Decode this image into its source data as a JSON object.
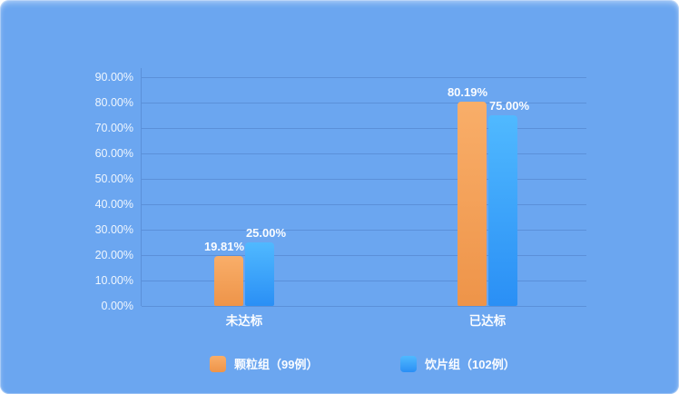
{
  "panel": {
    "background": "#6BA6F0",
    "gridline_color": "#5B90D9",
    "axis_color": "#5B90D9",
    "tick_text_color": "#EFF6FE",
    "label_text_color": "#FAFCFF"
  },
  "chart_data": {
    "type": "bar",
    "categories": [
      "未达标",
      "已达标"
    ],
    "series": [
      {
        "name": "颗粒组（99例）",
        "values": [
          19.81,
          80.19
        ],
        "labels": [
          "19.81%",
          "80.19%"
        ],
        "color_top": "#F9AE69",
        "color_bottom": "#EE9449"
      },
      {
        "name": "饮片组（102例）",
        "values": [
          25.0,
          75.0
        ],
        "labels": [
          "25.00%",
          "75.00%"
        ],
        "color_top": "#50B9FF",
        "color_bottom": "#2A8FF5"
      }
    ],
    "y_ticks": [
      "90.00%",
      "80.00%",
      "70.00%",
      "60.00%",
      "50.00%",
      "40.00%",
      "30.00%",
      "20.00%",
      "10.00%",
      "0.00%"
    ],
    "ylim": [
      0,
      90
    ],
    "grid": true,
    "legend_position": "bottom",
    "title": "",
    "xlabel": "",
    "ylabel": ""
  }
}
